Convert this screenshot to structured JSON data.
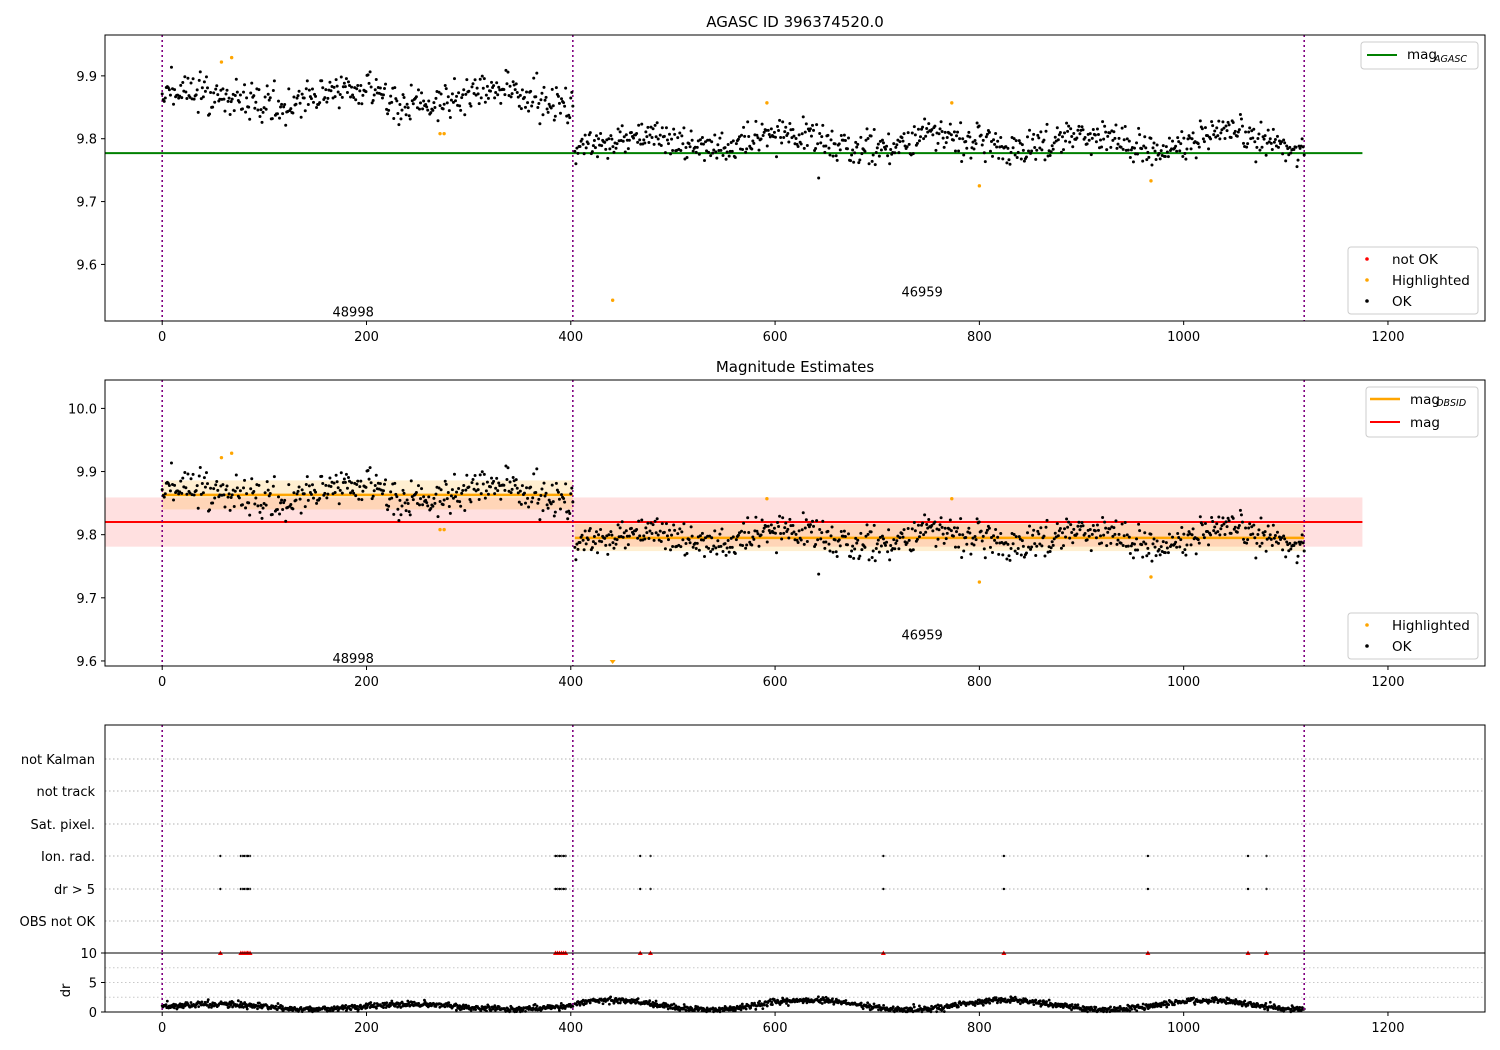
{
  "figure": {
    "top_title": "AGASC ID 396374520.0",
    "middle_title": "Magnitude Estimates"
  },
  "chart_data": [
    {
      "id": "panel1",
      "type": "scatter",
      "title": "AGASC ID 396374520.0",
      "xlim": [
        -56,
        1295
      ],
      "ylim": [
        9.51,
        9.965
      ],
      "x_ticks": [
        0,
        200,
        400,
        600,
        800,
        1000,
        1200
      ],
      "y_ticks": [
        9.6,
        9.7,
        9.8,
        9.9
      ],
      "y_tick_labels": [
        "9.6",
        "9.7",
        "9.8",
        "9.9"
      ],
      "obs_boundaries": [
        0,
        402,
        1118
      ],
      "obs_labels": [
        {
          "text": "48998",
          "x": 201,
          "y": 9.525
        },
        {
          "text": "46959",
          "x": 758,
          "y": 9.557
        }
      ],
      "agasc_mag": 9.777,
      "agasc_line_x": [
        -56,
        1175
      ],
      "segments": [
        {
          "x_start": 0,
          "x_end": 402,
          "points": 400,
          "base": 9.865,
          "noise": 0.018,
          "wave": 0.012
        },
        {
          "x_start": 404,
          "x_end": 1118,
          "points": 710,
          "base": 9.795,
          "noise": 0.016,
          "wave": 0.012
        }
      ],
      "highlighted_points": [
        {
          "x": 58,
          "y": 9.922
        },
        {
          "x": 68,
          "y": 9.929
        },
        {
          "x": 272,
          "y": 9.808
        },
        {
          "x": 276,
          "y": 9.808
        },
        {
          "x": 441,
          "y": 9.543
        },
        {
          "x": 592,
          "y": 9.857
        },
        {
          "x": 773,
          "y": 9.857
        },
        {
          "x": 800,
          "y": 9.725
        },
        {
          "x": 968,
          "y": 9.733
        }
      ],
      "legend_upper": [
        {
          "label": "mag",
          "subscript": "AGASC",
          "color": "#008000"
        }
      ],
      "legend_lower": [
        {
          "label": "not OK",
          "color": "#ff0000"
        },
        {
          "label": "Highlighted",
          "color": "#ffa500"
        },
        {
          "label": "OK",
          "color": "#000000"
        }
      ]
    },
    {
      "id": "panel2",
      "type": "scatter",
      "title": "Magnitude Estimates",
      "xlim": [
        -56,
        1295
      ],
      "ylim": [
        9.592,
        10.045
      ],
      "x_ticks": [
        0,
        200,
        400,
        600,
        800,
        1000,
        1200
      ],
      "y_ticks": [
        9.6,
        9.7,
        9.8,
        9.9,
        10.0
      ],
      "y_tick_labels": [
        "9.6",
        "9.7",
        "9.8",
        "9.9",
        "10.0"
      ],
      "obs_boundaries": [
        0,
        402,
        1118
      ],
      "obs_labels": [
        {
          "text": "48998",
          "x": 201,
          "y": 9.605
        },
        {
          "text": "46959",
          "x": 758,
          "y": 9.642
        }
      ],
      "mag": 9.82,
      "mag_band": [
        9.781,
        9.859
      ],
      "mag_line_x": [
        -56,
        1175
      ],
      "obsid_mags": [
        {
          "x_start": 0,
          "x_end": 402,
          "mag": 9.863,
          "band": [
            9.84,
            9.886
          ]
        },
        {
          "x_start": 404,
          "x_end": 1118,
          "mag": 9.795,
          "band": [
            9.774,
            9.817
          ]
        }
      ],
      "highlighted_points": [
        {
          "x": 58,
          "y": 9.922
        },
        {
          "x": 68,
          "y": 9.929
        },
        {
          "x": 272,
          "y": 9.808
        },
        {
          "x": 276,
          "y": 9.808
        },
        {
          "x": 592,
          "y": 9.857
        },
        {
          "x": 773,
          "y": 9.857
        },
        {
          "x": 800,
          "y": 9.725
        },
        {
          "x": 968,
          "y": 9.733
        }
      ],
      "offscale_marker": {
        "x": 441,
        "color": "#ffa500"
      },
      "legend_upper": [
        {
          "label": "mag",
          "subscript": "OBSID",
          "color": "#ffa500"
        },
        {
          "label": "mag",
          "subscript": "",
          "color": "#ff0000"
        }
      ],
      "legend_lower": [
        {
          "label": "Highlighted",
          "color": "#ffa500"
        },
        {
          "label": "OK",
          "color": "#000000"
        }
      ]
    },
    {
      "id": "panel3",
      "type": "scatter",
      "xlim": [
        -56,
        1295
      ],
      "flag_rows": [
        "not Kalman",
        "not track",
        "Sat. pixel.",
        "Ion. rad.",
        "dr > 5",
        "OBS not OK"
      ],
      "flag_events": {
        "Ion. rad.": [
          57,
          77,
          79,
          81,
          83,
          84,
          86,
          385,
          387,
          389,
          391,
          393,
          395,
          468,
          478,
          706,
          824,
          965,
          1063,
          1081
        ],
        "dr > 5": [
          57,
          77,
          79,
          81,
          83,
          84,
          86,
          385,
          387,
          389,
          391,
          393,
          395,
          468,
          478,
          706,
          824,
          965,
          1063,
          1081
        ]
      },
      "obs_boundaries": [
        0,
        402,
        1118
      ]
    },
    {
      "id": "panel4",
      "type": "scatter",
      "xlim": [
        -56,
        1295
      ],
      "ylim": [
        0,
        10
      ],
      "ylabel": "dr",
      "x_ticks": [
        0,
        200,
        400,
        600,
        800,
        1000,
        1200
      ],
      "y_ticks": [
        0,
        5,
        10
      ],
      "y_tick_labels": [
        "0",
        "5",
        "10"
      ],
      "x_tick_labels": [
        "0",
        "200",
        "400",
        "600",
        "800",
        "1000",
        "1200"
      ],
      "dr_segments": [
        {
          "x_start": 0,
          "x_end": 402,
          "base": 0.9,
          "wave": 0.4
        },
        {
          "x_start": 404,
          "x_end": 1118,
          "base": 1.2,
          "wave": 0.8
        }
      ],
      "dr_over_limit_x": [
        57,
        77,
        79,
        81,
        83,
        84,
        86,
        385,
        387,
        389,
        391,
        393,
        395,
        468,
        478,
        706,
        824,
        965,
        1063,
        1081
      ],
      "obs_boundaries": [
        0,
        402,
        1118
      ]
    }
  ]
}
